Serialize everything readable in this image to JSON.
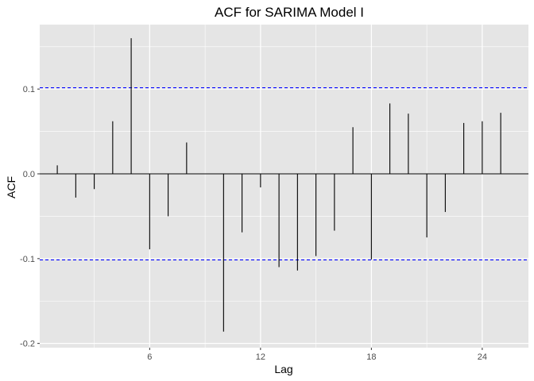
{
  "chart_data": {
    "type": "bar",
    "title": "ACF for SARIMA Model I",
    "xlabel": "Lag",
    "ylabel": "ACF",
    "x": [
      1,
      2,
      3,
      4,
      5,
      6,
      7,
      8,
      9,
      10,
      11,
      12,
      13,
      14,
      15,
      16,
      17,
      18,
      19,
      20,
      21,
      22,
      23,
      24,
      25
    ],
    "values": [
      0.01,
      -0.028,
      -0.018,
      0.062,
      0.16,
      -0.089,
      -0.05,
      0.037,
      0.0,
      -0.186,
      -0.069,
      -0.016,
      -0.11,
      -0.114,
      -0.097,
      -0.067,
      0.055,
      -0.101,
      0.083,
      0.071,
      -0.075,
      -0.045,
      0.06,
      0.062,
      0.072
    ],
    "xlim": [
      0.05,
      26.5
    ],
    "ylim": [
      -0.205,
      0.176
    ],
    "xticks": [
      6,
      12,
      18,
      24
    ],
    "yticks": [
      -0.2,
      -0.1,
      0.0,
      0.1
    ],
    "ytick_labels": [
      "-0.2",
      "-0.1",
      "0.0",
      "0.1"
    ],
    "confidence_bound": 0.1015,
    "grid": true,
    "colors": {
      "panel": "#e5e5e5",
      "grid": "#ffffff",
      "spike": "#000000",
      "bound": "#0000ff"
    }
  }
}
